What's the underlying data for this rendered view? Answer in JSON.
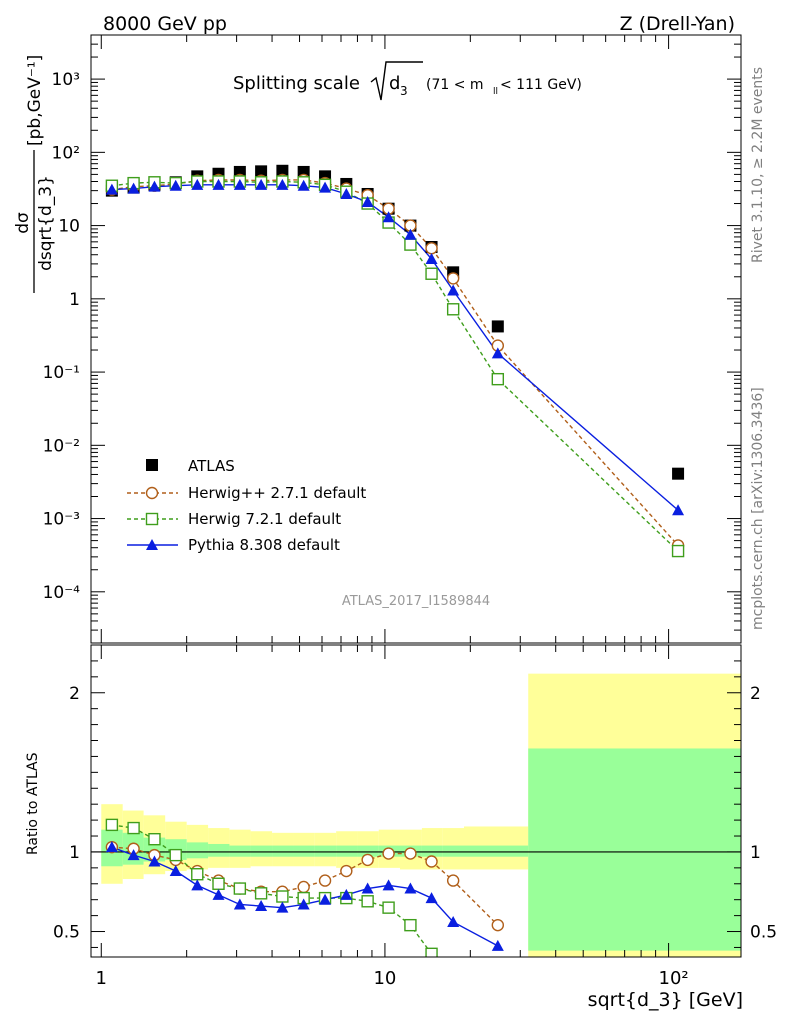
{
  "header": {
    "left": "8000 GeV pp",
    "right": "Z (Drell-Yan)"
  },
  "side_labels": {
    "rivet": "Rivet 3.1.10, ≥ 2.2M events",
    "mcplots": "mcplots.cern.ch [arXiv:1306.3436]"
  },
  "watermark": "ATLAS_2017_I1589844",
  "chart_data": [
    {
      "type": "scatter",
      "panel": "main",
      "title": "Splitting scale √d₃ (71 < m_ll < 111 GeV)",
      "title_main": "Splitting scale",
      "title_symbol": "d",
      "title_subscript": "3",
      "title_cut_pre": "(71 < m",
      "title_cut_sub": "ll",
      "title_cut_post": " < 111 GeV)",
      "ylabel": "dσ/dsqrt{d_3} [pb,GeV⁻¹]",
      "ylabel_num": "dσ",
      "ylabel_den": "dsqrt{d_3}",
      "ylabel_unit": "[pb,GeV⁻¹]",
      "xlabel": "sqrt{d_3} [GeV]",
      "xscale": "log",
      "yscale": "log",
      "xlim": [
        0.92,
        180
      ],
      "ylim": [
        2e-05,
        4000
      ],
      "legend_position": "bottom-left",
      "ytick_labels": {
        "e-4": "10⁻⁴",
        "e-3": "10⁻³",
        "e-2": "10⁻²",
        "e-1": "10⁻¹",
        "e0": "1",
        "e1": "10",
        "e2": "10²",
        "e3": "10³"
      },
      "series": [
        {
          "name": "ATLAS",
          "color": "#000000",
          "marker": "filled-square",
          "x": [
            1.09,
            1.3,
            1.54,
            1.83,
            2.18,
            2.59,
            3.08,
            3.66,
            4.35,
            5.17,
            6.15,
            7.31,
            8.69,
            10.3,
            12.3,
            14.6,
            17.4,
            25.0,
            108.0
          ],
          "y": [
            30,
            33,
            36,
            39,
            47,
            51,
            54,
            55,
            56,
            54,
            47,
            37,
            27,
            17,
            10,
            5.1,
            2.3,
            0.42,
            0.0041
          ]
        },
        {
          "name": "Herwig++ 2.7.1 default",
          "color": "#b05f1a",
          "marker": "open-circle",
          "line": "dashed",
          "x": [
            1.09,
            1.3,
            1.54,
            1.83,
            2.18,
            2.59,
            3.08,
            3.66,
            4.35,
            5.17,
            6.15,
            7.31,
            8.69,
            10.3,
            12.3,
            14.6,
            17.4,
            25.0,
            108.0
          ],
          "y": [
            31,
            34,
            35,
            37,
            41,
            42,
            42,
            41,
            42,
            42,
            38,
            32,
            26,
            17,
            10,
            4.9,
            1.9,
            0.23,
            0.00043
          ]
        },
        {
          "name": "Herwig 7.2.1 default",
          "color": "#3f9e1c",
          "marker": "open-square",
          "line": "dashed",
          "x": [
            1.09,
            1.3,
            1.54,
            1.83,
            2.18,
            2.59,
            3.08,
            3.66,
            4.35,
            5.17,
            6.15,
            7.31,
            8.69,
            10.3,
            12.3,
            14.6,
            17.4,
            25.0,
            108.0
          ],
          "y": [
            35,
            38,
            39,
            38,
            40,
            40,
            40,
            39,
            40,
            39,
            36,
            29,
            20,
            11,
            5.5,
            2.2,
            0.72,
            0.08,
            0.00036
          ]
        },
        {
          "name": "Pythia 8.308 default",
          "color": "#0a1fe0",
          "marker": "filled-triangle",
          "line": "solid",
          "x": [
            1.09,
            1.3,
            1.54,
            1.83,
            2.18,
            2.59,
            3.08,
            3.66,
            4.35,
            5.17,
            6.15,
            7.31,
            8.69,
            10.3,
            12.3,
            14.6,
            17.4,
            25.0,
            108.0
          ],
          "y": [
            31,
            32,
            34,
            35,
            36,
            36,
            36,
            36,
            36,
            35,
            33,
            27,
            21,
            13,
            7.5,
            3.5,
            1.3,
            0.18,
            0.0013
          ]
        }
      ]
    },
    {
      "type": "line",
      "panel": "ratio",
      "ylabel": "Ratio to ATLAS",
      "xscale": "log",
      "xlim": [
        0.92,
        180
      ],
      "ylim": [
        0.34,
        2.3
      ],
      "yticks": [
        0.5,
        1,
        2
      ],
      "ytick_labels": [
        "0.5",
        "1",
        "2"
      ],
      "xticks": [
        1,
        10,
        100
      ],
      "xtick_labels": [
        "1",
        "10",
        "10²"
      ],
      "bands": [
        {
          "name": "total uncertainty",
          "color": "#ffff99",
          "bins": [
            [
              1.0,
              1.19,
              0.8,
              1.3
            ],
            [
              1.19,
              1.41,
              0.83,
              1.26
            ],
            [
              1.41,
              1.68,
              0.86,
              1.23
            ],
            [
              1.68,
              2.0,
              0.88,
              1.19
            ],
            [
              2.0,
              2.38,
              0.89,
              1.17
            ],
            [
              2.38,
              2.83,
              0.9,
              1.15
            ],
            [
              2.83,
              3.36,
              0.9,
              1.14
            ],
            [
              3.36,
              4.0,
              0.91,
              1.13
            ],
            [
              4.0,
              4.76,
              0.91,
              1.12
            ],
            [
              4.76,
              5.66,
              0.91,
              1.12
            ],
            [
              5.66,
              6.73,
              0.91,
              1.12
            ],
            [
              6.73,
              8.0,
              0.9,
              1.13
            ],
            [
              8.0,
              9.51,
              0.9,
              1.13
            ],
            [
              9.51,
              11.3,
              0.9,
              1.14
            ],
            [
              11.3,
              13.5,
              0.89,
              1.14
            ],
            [
              13.5,
              16.0,
              0.89,
              1.15
            ],
            [
              16.0,
              19.0,
              0.89,
              1.15
            ],
            [
              19.0,
              32.0,
              0.89,
              1.16
            ],
            [
              32.0,
              180.0,
              0.34,
              2.12
            ]
          ]
        },
        {
          "name": "statistical uncertainty",
          "color": "#99ff99",
          "bins": [
            [
              1.0,
              1.19,
              0.91,
              1.14
            ],
            [
              1.19,
              1.41,
              0.92,
              1.12
            ],
            [
              1.41,
              1.68,
              0.94,
              1.09
            ],
            [
              1.68,
              2.0,
              0.95,
              1.08
            ],
            [
              2.0,
              2.38,
              0.96,
              1.06
            ],
            [
              2.38,
              2.83,
              0.97,
              1.05
            ],
            [
              2.83,
              3.36,
              0.97,
              1.04
            ],
            [
              3.36,
              4.0,
              0.97,
              1.04
            ],
            [
              4.0,
              4.76,
              0.97,
              1.04
            ],
            [
              4.76,
              5.66,
              0.97,
              1.04
            ],
            [
              5.66,
              6.73,
              0.97,
              1.04
            ],
            [
              6.73,
              8.0,
              0.97,
              1.04
            ],
            [
              8.0,
              9.51,
              0.97,
              1.04
            ],
            [
              9.51,
              11.3,
              0.97,
              1.04
            ],
            [
              11.3,
              13.5,
              0.97,
              1.04
            ],
            [
              13.5,
              16.0,
              0.97,
              1.04
            ],
            [
              16.0,
              19.0,
              0.97,
              1.04
            ],
            [
              19.0,
              32.0,
              0.97,
              1.04
            ],
            [
              32.0,
              180.0,
              0.38,
              1.65
            ]
          ]
        }
      ],
      "series": [
        {
          "name": "Herwig++ 2.7.1 default",
          "color": "#b05f1a",
          "marker": "open-circle",
          "line": "dashed",
          "x": [
            1.09,
            1.3,
            1.54,
            1.83,
            2.18,
            2.59,
            3.08,
            3.66,
            4.35,
            5.17,
            6.15,
            7.31,
            8.69,
            10.3,
            12.3,
            14.6,
            17.4,
            25.0
          ],
          "y": [
            1.03,
            1.02,
            0.98,
            0.95,
            0.88,
            0.82,
            0.77,
            0.75,
            0.75,
            0.78,
            0.82,
            0.88,
            0.95,
            0.99,
            0.99,
            0.94,
            0.82,
            0.54
          ]
        },
        {
          "name": "Herwig 7.2.1 default",
          "color": "#3f9e1c",
          "marker": "open-square",
          "line": "dashed",
          "x": [
            1.09,
            1.3,
            1.54,
            1.83,
            2.18,
            2.59,
            3.08,
            3.66,
            4.35,
            5.17,
            6.15,
            7.31,
            8.69,
            10.3,
            12.3,
            14.6
          ],
          "y": [
            1.17,
            1.15,
            1.08,
            0.98,
            0.86,
            0.8,
            0.77,
            0.74,
            0.72,
            0.71,
            0.71,
            0.71,
            0.69,
            0.65,
            0.54,
            0.36
          ]
        },
        {
          "name": "Pythia 8.308 default",
          "color": "#0a1fe0",
          "marker": "filled-triangle",
          "line": "solid",
          "x": [
            1.09,
            1.3,
            1.54,
            1.83,
            2.18,
            2.59,
            3.08,
            3.66,
            4.35,
            5.17,
            6.15,
            7.31,
            8.69,
            10.3,
            12.3,
            14.6,
            17.4,
            25.0
          ],
          "y": [
            1.03,
            0.98,
            0.94,
            0.88,
            0.79,
            0.73,
            0.67,
            0.66,
            0.65,
            0.67,
            0.7,
            0.73,
            0.77,
            0.79,
            0.77,
            0.71,
            0.56,
            0.41
          ]
        }
      ]
    }
  ]
}
